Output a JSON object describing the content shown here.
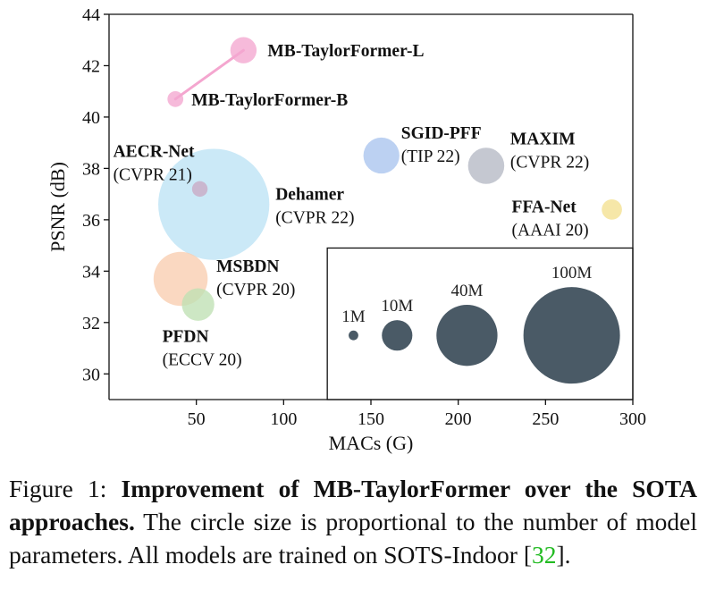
{
  "chart_data": {
    "type": "scatter",
    "xlabel": "MACs (G)",
    "ylabel": "PSNR (dB)",
    "xlim": [
      0,
      300
    ],
    "ylim": [
      29,
      44
    ],
    "xticks": [
      50,
      100,
      150,
      200,
      250,
      300
    ],
    "yticks": [
      30,
      32,
      34,
      36,
      38,
      40,
      42,
      44
    ],
    "grid": false,
    "points": [
      {
        "name": "MB-TaylorFormer-L",
        "venue": "",
        "x": 77,
        "y": 42.6,
        "params_m": 7.4,
        "color": "#f4a6cf"
      },
      {
        "name": "MB-TaylorFormer-B",
        "venue": "",
        "x": 38,
        "y": 40.7,
        "params_m": 2.7,
        "color": "#f4a6cf"
      },
      {
        "name": "SGID-PFF",
        "venue": "(TIP 22)",
        "x": 156,
        "y": 38.5,
        "params_m": 13.9,
        "color": "#a9c4ee"
      },
      {
        "name": "MAXIM",
        "venue": "(CVPR 22)",
        "x": 216,
        "y": 38.1,
        "params_m": 14.1,
        "color": "#b5b9c4"
      },
      {
        "name": "AECR-Net",
        "venue": "(CVPR 21)",
        "x": 52,
        "y": 37.2,
        "params_m": 2.6,
        "color": "#c9a9c4"
      },
      {
        "name": "Dehamer",
        "venue": "(CVPR 22)",
        "x": 60,
        "y": 36.6,
        "params_m": 132.5,
        "color": "#bde3f5"
      },
      {
        "name": "FFA-Net",
        "venue": "(AAAI 20)",
        "x": 288,
        "y": 36.4,
        "params_m": 4.4,
        "color": "#f3e08f"
      },
      {
        "name": "MSBDN",
        "venue": "(CVPR 20)",
        "x": 41,
        "y": 33.7,
        "params_m": 31.4,
        "color": "#f8cdb0"
      },
      {
        "name": "PFDN",
        "venue": "(ECCV 20)",
        "x": 51,
        "y": 32.7,
        "params_m": 11.3,
        "color": "#bfe0b3"
      }
    ],
    "connections": [
      [
        "MB-TaylorFormer-B",
        "MB-TaylorFormer-L"
      ]
    ],
    "size_legend": {
      "color": "#4a5a66",
      "entries": [
        {
          "label": "1M",
          "x": 140,
          "y": 31.5,
          "params_m": 1
        },
        {
          "label": "10M",
          "x": 165,
          "y": 31.5,
          "params_m": 10
        },
        {
          "label": "40M",
          "x": 205,
          "y": 31.5,
          "params_m": 40
        },
        {
          "label": "100M",
          "x": 265,
          "y": 31.5,
          "params_m": 100
        }
      ],
      "box_xlim": [
        125,
        300
      ],
      "box_ylim": [
        29,
        34.9
      ]
    }
  },
  "caption": {
    "prefix": "Figure 1: ",
    "bold": "Improvement of MB-TaylorFormer over the SOTA approaches.",
    "text": " The circle size is proportional to the number of model parameters.  All models are trained on SOTS-Indoor [",
    "cite": "32",
    "suffix": "]."
  }
}
